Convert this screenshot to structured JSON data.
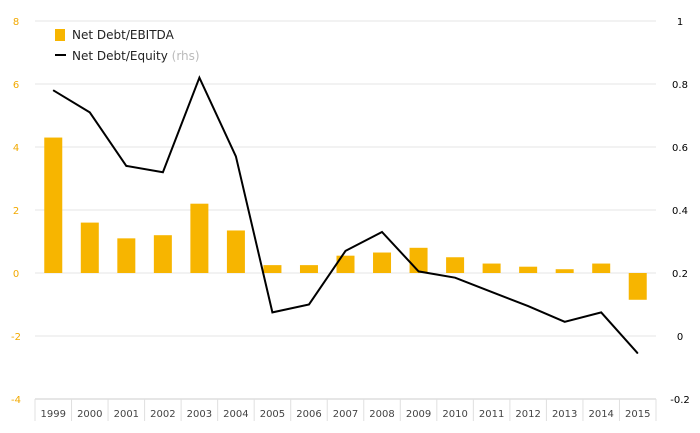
{
  "chart_data": {
    "type": "bar+line",
    "categories": [
      "1999",
      "2000",
      "2001",
      "2002",
      "2003",
      "2004",
      "2005",
      "2006",
      "2007",
      "2008",
      "2009",
      "2010",
      "2011",
      "2012",
      "2013",
      "2014",
      "2015"
    ],
    "series": [
      {
        "name": "Net Debt/EBITDA",
        "axis": "left",
        "kind": "bar",
        "color": "#f7b500",
        "values": [
          4.3,
          1.6,
          1.1,
          1.2,
          2.2,
          1.35,
          0.25,
          0.25,
          0.55,
          0.65,
          0.8,
          0.5,
          0.3,
          0.2,
          0.12,
          0.3,
          -0.85
        ]
      },
      {
        "name": "Net Debt/Equity",
        "axis": "right",
        "kind": "line",
        "color": "#000000",
        "values": [
          0.78,
          0.71,
          0.54,
          0.52,
          0.82,
          0.57,
          0.075,
          0.1,
          0.27,
          0.33,
          0.205,
          0.185,
          0.14,
          0.095,
          0.045,
          0.075,
          -0.055
        ]
      }
    ],
    "legend": {
      "items": [
        {
          "label": "Net Debt/EBITDA",
          "suffix": ""
        },
        {
          "label": "Net Debt/Equity",
          "suffix": "(rhs)"
        }
      ],
      "placement": "top-left"
    },
    "y_left": {
      "min": -4,
      "max": 8,
      "ticks": [
        "8",
        "6",
        "4",
        "2",
        "0",
        "-2",
        "-4"
      ],
      "tick_values": [
        8,
        6,
        4,
        2,
        0,
        -2,
        -4
      ],
      "color": "#f2a900"
    },
    "y_right": {
      "min": -0.2,
      "max": 1,
      "ticks": [
        "1",
        "0.8",
        "0.6",
        "0.4",
        "0.2",
        "0",
        "-0.2"
      ],
      "tick_values": [
        1,
        0.8,
        0.6,
        0.4,
        0.2,
        0,
        -0.2
      ],
      "color": "#000000"
    },
    "grid": true
  }
}
